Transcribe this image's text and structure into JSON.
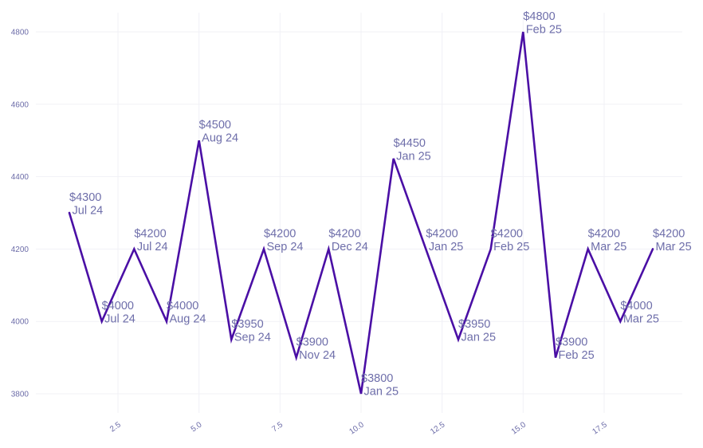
{
  "chart_data": {
    "type": "line",
    "title": "",
    "xlabel": "",
    "ylabel": "",
    "xlim": [
      1,
      19
    ],
    "ylim": [
      3800,
      4800
    ],
    "x_ticks": [
      2.5,
      5.0,
      7.5,
      10.0,
      12.5,
      15.0,
      17.5
    ],
    "x_tick_labels": [
      "2.5",
      "5.0",
      "7.5",
      "10.0",
      "12.5",
      "15.0",
      "17.5"
    ],
    "y_ticks": [
      3800,
      4000,
      4200,
      4400,
      4600,
      4800
    ],
    "y_tick_labels": [
      "3800",
      "4000",
      "4200",
      "4400",
      "4600",
      "4800"
    ],
    "grid": true,
    "legend": "none",
    "line_color": "#4a0fa5",
    "label_color": "#6e6eaa",
    "points": [
      {
        "x": 1,
        "y": 4300,
        "price": "$4300",
        "month": "Jul 24"
      },
      {
        "x": 2,
        "y": 4000,
        "price": "$4000",
        "month": "Jul 24"
      },
      {
        "x": 3,
        "y": 4200,
        "price": "$4200",
        "month": "Jul 24"
      },
      {
        "x": 4,
        "y": 4000,
        "price": "$4000",
        "month": "Aug 24"
      },
      {
        "x": 5,
        "y": 4500,
        "price": "$4500",
        "month": "Aug 24"
      },
      {
        "x": 6,
        "y": 3950,
        "price": "$3950",
        "month": "Sep 24"
      },
      {
        "x": 7,
        "y": 4200,
        "price": "$4200",
        "month": "Sep 24"
      },
      {
        "x": 8,
        "y": 3900,
        "price": "$3900",
        "month": "Nov 24"
      },
      {
        "x": 9,
        "y": 4200,
        "price": "$4200",
        "month": "Dec 24"
      },
      {
        "x": 10,
        "y": 3800,
        "price": "$3800",
        "month": "Jan 25"
      },
      {
        "x": 11,
        "y": 4450,
        "price": "$4450",
        "month": "Jan 25"
      },
      {
        "x": 12,
        "y": 4200,
        "price": "$4200",
        "month": "Jan 25"
      },
      {
        "x": 13,
        "y": 3950,
        "price": "$3950",
        "month": "Jan 25"
      },
      {
        "x": 14,
        "y": 4200,
        "price": "$4200",
        "month": "Feb 25"
      },
      {
        "x": 15,
        "y": 4800,
        "price": "$4800",
        "month": "Feb 25"
      },
      {
        "x": 16,
        "y": 3900,
        "price": "$3900",
        "month": "Feb 25"
      },
      {
        "x": 17,
        "y": 4200,
        "price": "$4200",
        "month": "Mar 25"
      },
      {
        "x": 18,
        "y": 4000,
        "price": "$4000",
        "month": "Mar 25"
      },
      {
        "x": 19,
        "y": 4200,
        "price": "$4200",
        "month": "Mar 25"
      }
    ]
  }
}
